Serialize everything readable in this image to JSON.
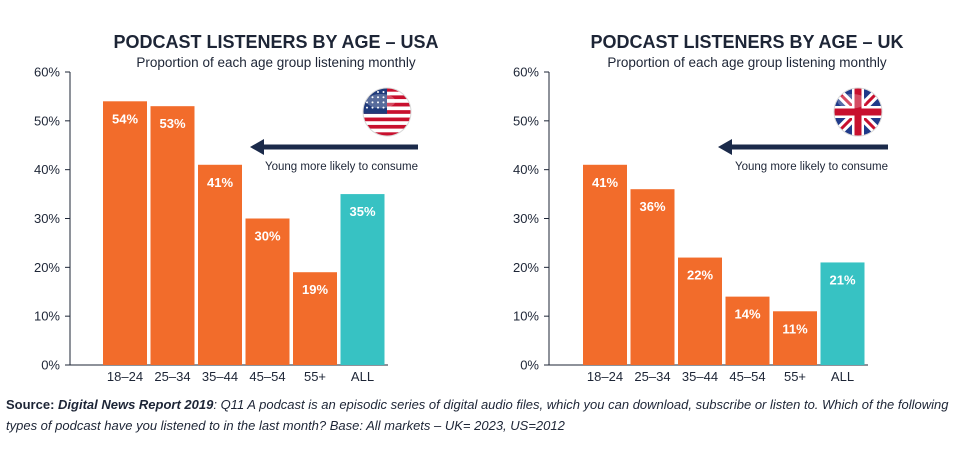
{
  "colors": {
    "bar": "#f26c2b",
    "all_bar": "#37c2c3",
    "text": "#1d2536",
    "arrow": "#1b2a4a"
  },
  "chart_data": [
    {
      "type": "bar",
      "title": "PODCAST LISTENERS BY AGE – USA",
      "subtitle": "Proportion of each age group listening monthly",
      "categories": [
        "18–24",
        "25–34",
        "35–44",
        "45–54",
        "55+",
        "ALL"
      ],
      "values": [
        54,
        53,
        41,
        30,
        19,
        35
      ],
      "value_labels": [
        "54%",
        "53%",
        "41%",
        "30%",
        "19%",
        "35%"
      ],
      "highlight_category": "ALL",
      "ylim": [
        0,
        60
      ],
      "yticks": [
        0,
        10,
        20,
        30,
        40,
        50,
        60
      ],
      "ytick_labels": [
        "0%",
        "10%",
        "20%",
        "30%",
        "40%",
        "50%",
        "60%"
      ],
      "annotation": "Young more likely to consume",
      "flag_icon": "us-flag-icon",
      "grid": false
    },
    {
      "type": "bar",
      "title": "PODCAST LISTENERS BY AGE – UK",
      "subtitle": "Proportion of each age group listening monthly",
      "categories": [
        "18–24",
        "25–34",
        "35–44",
        "45–54",
        "55+",
        "ALL"
      ],
      "values": [
        41,
        36,
        22,
        14,
        11,
        21
      ],
      "value_labels": [
        "41%",
        "36%",
        "22%",
        "14%",
        "11%",
        "21%"
      ],
      "highlight_category": "ALL",
      "ylim": [
        0,
        60
      ],
      "yticks": [
        0,
        10,
        20,
        30,
        40,
        50,
        60
      ],
      "ytick_labels": [
        "0%",
        "10%",
        "20%",
        "30%",
        "40%",
        "50%",
        "60%"
      ],
      "annotation": "Young more likely to consume",
      "flag_icon": "uk-flag-icon",
      "grid": false
    }
  ],
  "source": {
    "label": "Source: ",
    "report": "Digital News Report 2019",
    "text": ": Q11 A podcast is an episodic series of digital audio files, which you can download, subscribe or listen to. Which of the following types of podcast have you listened to in the last month? Base: All markets – UK= 2023, US=2012"
  }
}
